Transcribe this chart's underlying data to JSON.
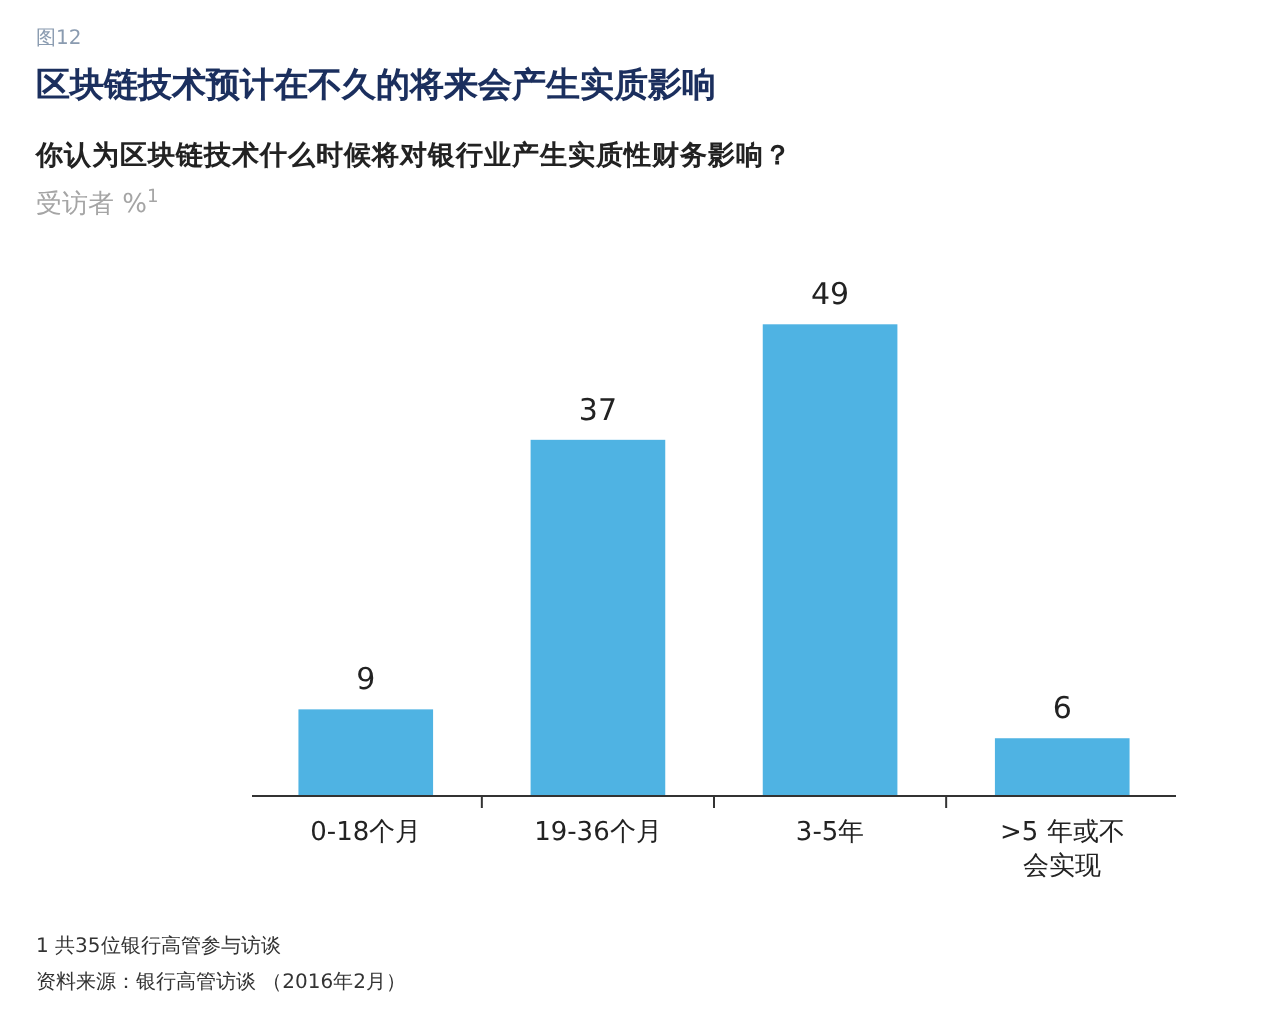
{
  "chart_data": {
    "type": "bar",
    "title": "区块链技术预计在不久的将来会产生实质影响",
    "subtitle": "你认为区块链技术什么时候将对银行业产生实质性财务影响？",
    "categories": [
      "0-18个月",
      "19-36个月",
      "3-5年",
      ">5 年或不会实现"
    ],
    "values": [
      9,
      37,
      49,
      6
    ],
    "color": "#4fb3e3",
    "data_labels": true,
    "annotations": [
      "图12",
      "受访者 %$^{1}$",
      "1 共35位银行高管参与访谈",
      "资料来源：银行高管访谈 （2016年2月）"
    ]
  }
}
